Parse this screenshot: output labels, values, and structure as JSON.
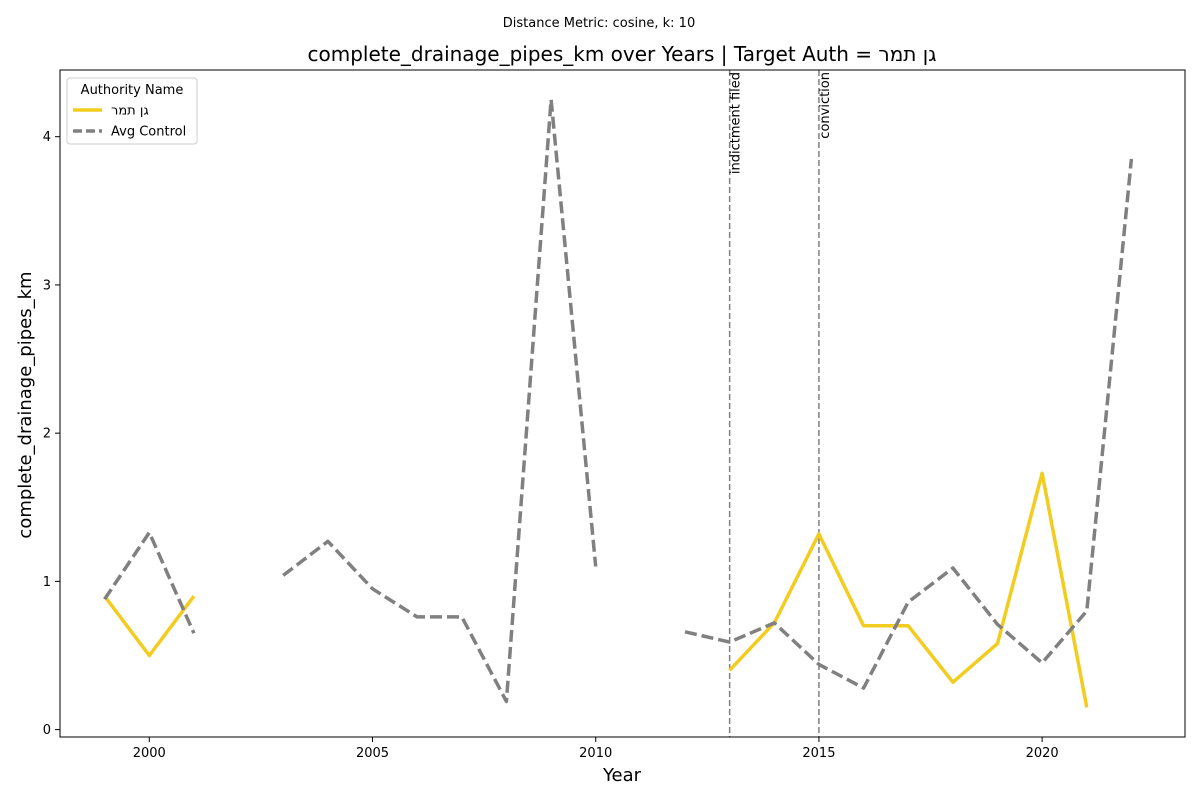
{
  "chart_data": {
    "type": "line",
    "suptitle": "Distance Metric: cosine, k: 10",
    "title": "complete_drainage_pipes_km over Years | Target Auth = גן תמר",
    "xlabel": "Year",
    "ylabel": "complete_drainage_pipes_km",
    "xlim": [
      1998.0,
      2023.2
    ],
    "ylim": [
      -0.05,
      4.45
    ],
    "x_ticks": [
      2000,
      2005,
      2010,
      2015,
      2020
    ],
    "y_ticks": [
      0,
      1,
      2,
      3,
      4
    ],
    "grid": false,
    "legend": {
      "title": "Authority Name",
      "placement": "top-left"
    },
    "series": [
      {
        "name": "גן תמר",
        "color": "#f2cd1f",
        "style": "solid",
        "points": [
          [
            1999,
            0.9
          ],
          [
            2000,
            0.5
          ],
          [
            2001,
            0.9
          ],
          [
            2002,
            null
          ],
          [
            2012,
            null
          ],
          [
            2013,
            0.4
          ],
          [
            2014,
            0.72
          ],
          [
            2015,
            1.32
          ],
          [
            2016,
            0.7
          ],
          [
            2017,
            0.7
          ],
          [
            2018,
            0.32
          ],
          [
            2019,
            0.58
          ],
          [
            2020,
            1.73
          ],
          [
            2021,
            0.15
          ]
        ]
      },
      {
        "name": "Avg Control",
        "color": "#808080",
        "style": "dashed",
        "points": [
          [
            1999,
            0.88
          ],
          [
            2000,
            1.33
          ],
          [
            2001,
            0.65
          ],
          [
            2002,
            null
          ],
          [
            2003,
            1.04
          ],
          [
            2004,
            1.27
          ],
          [
            2005,
            0.95
          ],
          [
            2006,
            0.76
          ],
          [
            2007,
            0.76
          ],
          [
            2008,
            0.19
          ],
          [
            2009,
            4.25
          ],
          [
            2010,
            1.1
          ],
          [
            2011,
            null
          ],
          [
            2012,
            0.66
          ],
          [
            2013,
            0.59
          ],
          [
            2014,
            0.72
          ],
          [
            2015,
            0.44
          ],
          [
            2016,
            0.28
          ],
          [
            2017,
            0.86
          ],
          [
            2018,
            1.09
          ],
          [
            2019,
            0.71
          ],
          [
            2020,
            0.45
          ],
          [
            2021,
            0.8
          ],
          [
            2022,
            3.85
          ]
        ]
      }
    ],
    "events": [
      {
        "x": 2013,
        "label": "indictment filed"
      },
      {
        "x": 2015,
        "label": "conviction"
      }
    ]
  }
}
